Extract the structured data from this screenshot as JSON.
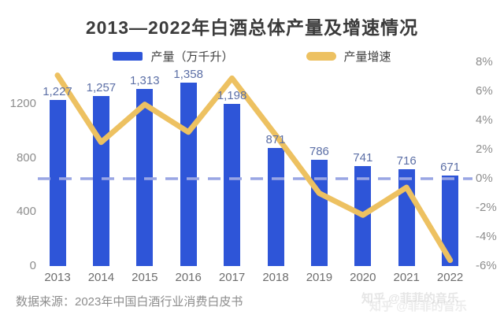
{
  "title": "2013—2022年白酒总体产量及增速情况",
  "legend": {
    "items": [
      {
        "label": "产量（万千升）",
        "color": "#2e55d8",
        "type": "bar"
      },
      {
        "label": "产量增速",
        "color": "#edc161",
        "type": "line"
      }
    ]
  },
  "source_note": "数据来源：2023年中国白酒行业消费白皮书",
  "watermark": {
    "text": "知乎 @菲菲的音乐"
  },
  "colors": {
    "bar": "#2e55d8",
    "line": "#edc161",
    "zero_dashed_line": "#9aa6e4",
    "value_label": "#5c6fa6",
    "axis_text": "#8d8d8d"
  },
  "chart_data": {
    "type": "bar",
    "title": "2013—2022年白酒总体产量及增速情况",
    "categories": [
      "2013",
      "2014",
      "2015",
      "2016",
      "2017",
      "2018",
      "2019",
      "2020",
      "2021",
      "2022"
    ],
    "series": [
      {
        "name": "产量（万千升）",
        "type": "bar",
        "values": [
          1227,
          1257,
          1313,
          1358,
          1198,
          871,
          786,
          741,
          716,
          671
        ],
        "value_labels": [
          "1,227",
          "1,257",
          "1,313",
          "1,358",
          "1,198",
          "871",
          "786",
          "741",
          "716",
          "671"
        ],
        "axis": "left",
        "color": "#2e55d8"
      },
      {
        "name": "产量增速",
        "type": "line",
        "values": [
          7.1,
          2.5,
          5.1,
          3.2,
          6.9,
          3.0,
          -1.0,
          -2.5,
          -0.6,
          -5.6
        ],
        "unit": "%",
        "axis": "right",
        "color": "#edc161"
      }
    ],
    "left_axis": {
      "ticks": [
        1200,
        800,
        400,
        0
      ],
      "min": 0,
      "max": 1200
    },
    "right_axis": {
      "ticks": [
        8,
        6,
        4,
        2,
        0,
        -2,
        -4,
        -6
      ],
      "unit": "%",
      "min": -6,
      "max": 8
    },
    "zero_line": {
      "value": 0,
      "axis": "right",
      "style": "dashed"
    },
    "grid": false,
    "legend_position": "top"
  }
}
